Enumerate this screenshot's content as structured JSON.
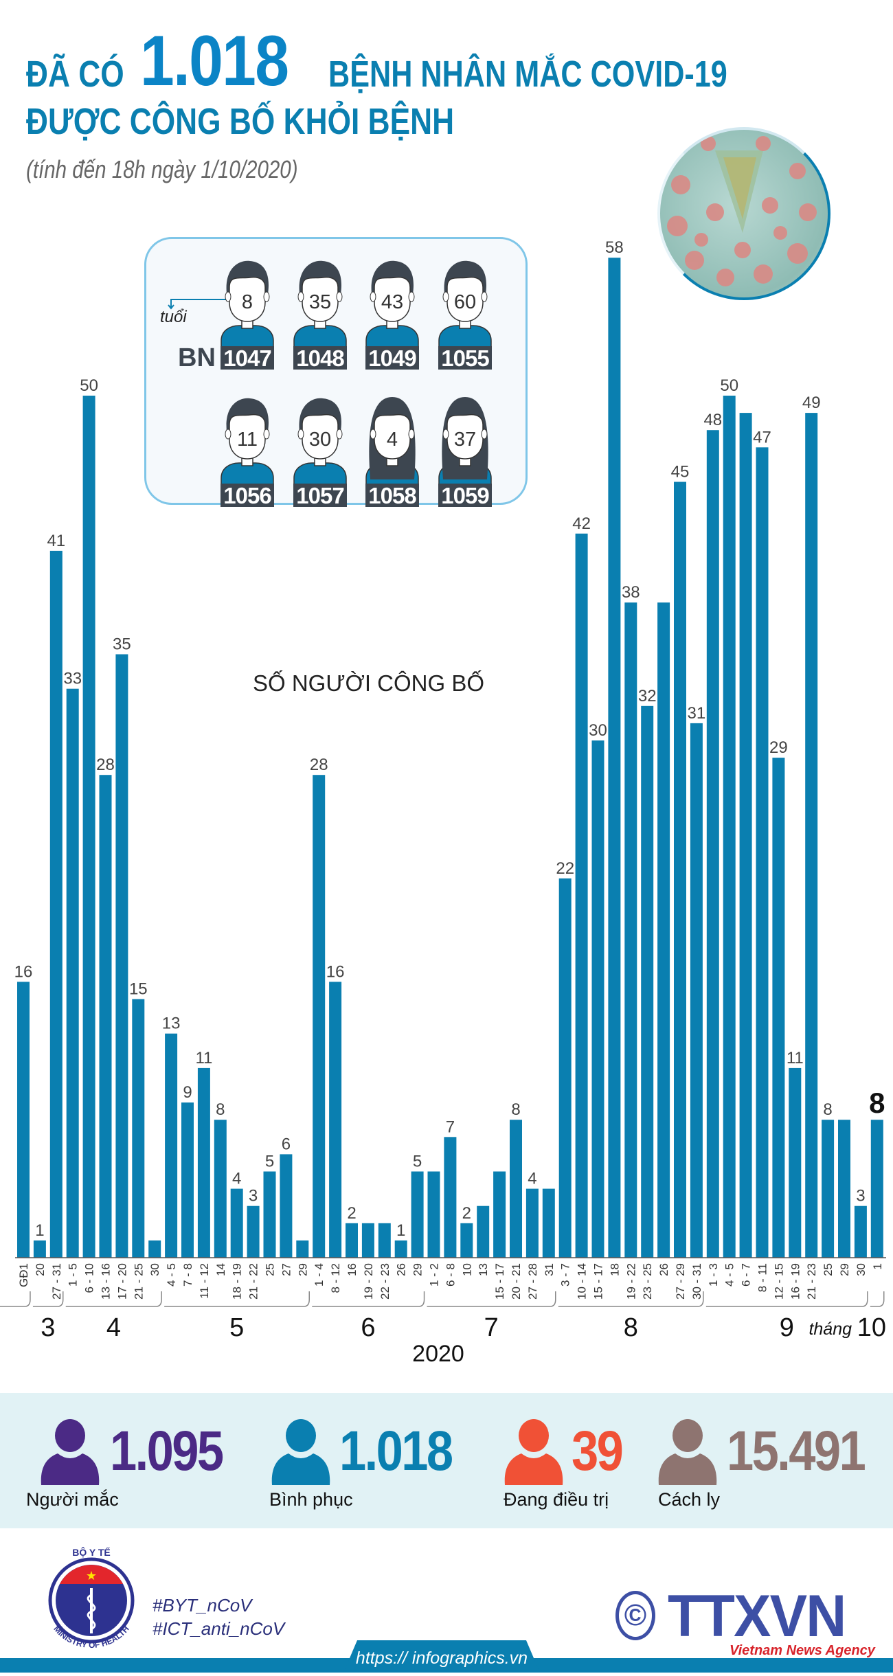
{
  "header": {
    "title_prefix": "ĐÃ CÓ",
    "title_number": "1.018",
    "title_suffix": "BỆNH NHÂN MẮC COVID-19",
    "title_line2": "ĐƯỢC CÔNG BỐ KHỎI BỆNH",
    "subtitle": "(tính đến 18h ngày 1/10/2020)"
  },
  "patients": {
    "age_label": "tuổi",
    "id_prefix": "BN",
    "items": [
      {
        "age": "8",
        "id": "1047",
        "gender": "male"
      },
      {
        "age": "35",
        "id": "1048",
        "gender": "male"
      },
      {
        "age": "43",
        "id": "1049",
        "gender": "male"
      },
      {
        "age": "60",
        "id": "1055",
        "gender": "male"
      },
      {
        "age": "11",
        "id": "1056",
        "gender": "male"
      },
      {
        "age": "30",
        "id": "1057",
        "gender": "male"
      },
      {
        "age": "4",
        "id": "1058",
        "gender": "female"
      },
      {
        "age": "37",
        "id": "1059",
        "gender": "female"
      }
    ]
  },
  "chart_data": {
    "type": "bar",
    "title": "SỐ NGƯỜI CÔNG BỐ",
    "xlabel": "2020",
    "month_prefix": "tháng",
    "bar_color": "#0a7fb0",
    "ylim": [
      0,
      60
    ],
    "categories": [
      "GĐ1",
      "20",
      "27 - 31",
      "1 - 5",
      "6 - 10",
      "13 - 16",
      "17 - 20",
      "21 - 25",
      "30",
      "4 - 5",
      "7 - 8",
      "11 - 12",
      "14",
      "18 - 19",
      "21 - 22",
      "25",
      "27",
      "29",
      "1 - 4",
      "8 - 12",
      "16",
      "19 - 20",
      "22 - 23",
      "26",
      "29",
      "1 - 2",
      "6 - 8",
      "10",
      "13",
      "15 - 17",
      "20 - 21",
      "27 - 28",
      "31",
      "3 - 7",
      "10 - 14",
      "15 - 17",
      "18",
      "19 - 22",
      "23 - 25",
      "26",
      "27 - 29",
      "30 - 31",
      "1 - 3",
      "4 - 5",
      "6 - 7",
      "8 - 11",
      "12 - 15",
      "16 - 19",
      "21 - 23",
      "25",
      "29",
      "30",
      "1"
    ],
    "months": [
      "",
      "3",
      "3",
      "4",
      "4",
      "4",
      "4",
      "4",
      "4",
      "5",
      "5",
      "5",
      "5",
      "5",
      "5",
      "5",
      "5",
      "5",
      "6",
      "6",
      "6",
      "6",
      "6",
      "6",
      "6",
      "7",
      "7",
      "7",
      "7",
      "7",
      "7",
      "7",
      "7",
      "8",
      "8",
      "8",
      "8",
      "8",
      "8",
      "8",
      "8",
      "8",
      "9",
      "9",
      "9",
      "9",
      "9",
      "9",
      "9",
      "9",
      "9",
      "9",
      "10"
    ],
    "values": [
      16,
      1,
      41,
      33,
      50,
      28,
      35,
      15,
      1,
      13,
      9,
      11,
      8,
      4,
      3,
      5,
      6,
      1,
      28,
      16,
      2,
      2,
      2,
      1,
      5,
      5,
      7,
      2,
      3,
      5,
      8,
      4,
      4,
      22,
      42,
      30,
      58,
      38,
      32,
      38,
      45,
      31,
      48,
      50,
      49,
      47,
      29,
      11,
      49,
      8,
      8,
      3,
      8
    ],
    "labels": [
      "16",
      "1",
      "41",
      "33",
      "50",
      "28",
      "35",
      "15",
      null,
      "13",
      "9",
      "11",
      "8",
      "4",
      "3",
      "5",
      "6",
      null,
      "28",
      "16",
      "2",
      null,
      null,
      "1",
      "5",
      null,
      "7",
      "2",
      null,
      null,
      "8",
      "4",
      null,
      "22",
      "42",
      "30",
      "58",
      "38",
      "32",
      null,
      "45",
      "31",
      "48",
      "50",
      null,
      "47",
      "29",
      "11",
      "49",
      "8",
      null,
      "3",
      "8"
    ],
    "highlight_last": true
  },
  "stats": [
    {
      "value": "1.095",
      "label": "Người mắc",
      "color": "#4b2a85"
    },
    {
      "value": "1.018",
      "label": "Bình phục",
      "color": "#0a7fb0"
    },
    {
      "value": "39",
      "label": "Đang điều trị",
      "color": "#f05136"
    },
    {
      "value": "15.491",
      "label": "Cách ly",
      "color": "#8e7470"
    }
  ],
  "footer": {
    "ministry_logo_text_top": "BỘ Y TẾ",
    "ministry_logo_text_bottom": "MINISTRY OF HEALTH",
    "hashtag1": "#BYT_nCoV",
    "hashtag2": "#ICT_anti_nCoV",
    "copyright_symbol": "©",
    "agency_logo": "TTXVN",
    "agency_name": "Vietnam News Agency",
    "url": "https:// infographics.vn"
  }
}
